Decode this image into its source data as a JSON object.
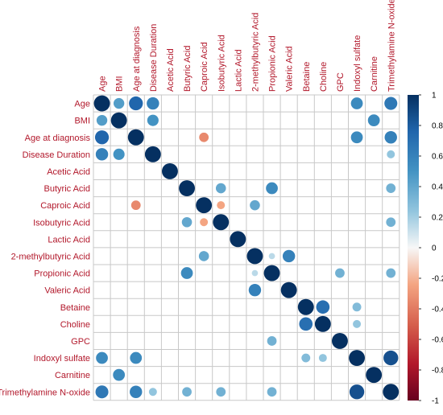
{
  "chart_data": {
    "type": "heatmap",
    "variables": [
      "Age",
      "BMI",
      "Age at diagnosis",
      "Disease Duration",
      "Acetic Acid",
      "Butyric Acid",
      "Caproic Acid",
      "Isobutyric Acid",
      "Lactic Acid",
      "2-methylbutyric Acid",
      "Propionic Acid",
      "Valeric Acid",
      "Betaine",
      "Choline",
      "GPC",
      "Indoxyl sulfate",
      "Carnitine",
      "Trimethylamine N-oxide"
    ],
    "cells": [
      {
        "row": 0,
        "col": 0,
        "value": 1.0
      },
      {
        "row": 0,
        "col": 1,
        "value": 0.45
      },
      {
        "row": 0,
        "col": 2,
        "value": 0.75
      },
      {
        "row": 0,
        "col": 3,
        "value": 0.6
      },
      {
        "row": 0,
        "col": 15,
        "value": 0.55
      },
      {
        "row": 0,
        "col": 17,
        "value": 0.65
      },
      {
        "row": 1,
        "col": 0,
        "value": 0.45
      },
      {
        "row": 1,
        "col": 1,
        "value": 1.0
      },
      {
        "row": 1,
        "col": 3,
        "value": 0.5
      },
      {
        "row": 1,
        "col": 16,
        "value": 0.55
      },
      {
        "row": 2,
        "col": 0,
        "value": 0.75
      },
      {
        "row": 2,
        "col": 2,
        "value": 1.0
      },
      {
        "row": 2,
        "col": 6,
        "value": -0.35
      },
      {
        "row": 2,
        "col": 15,
        "value": 0.55
      },
      {
        "row": 2,
        "col": 17,
        "value": 0.6
      },
      {
        "row": 3,
        "col": 0,
        "value": 0.6
      },
      {
        "row": 3,
        "col": 1,
        "value": 0.5
      },
      {
        "row": 3,
        "col": 3,
        "value": 1.0
      },
      {
        "row": 3,
        "col": 17,
        "value": 0.25
      },
      {
        "row": 4,
        "col": 4,
        "value": 1.0
      },
      {
        "row": 5,
        "col": 5,
        "value": 1.0
      },
      {
        "row": 5,
        "col": 7,
        "value": 0.4
      },
      {
        "row": 5,
        "col": 10,
        "value": 0.55
      },
      {
        "row": 5,
        "col": 17,
        "value": 0.35
      },
      {
        "row": 6,
        "col": 2,
        "value": -0.35
      },
      {
        "row": 6,
        "col": 6,
        "value": 1.0
      },
      {
        "row": 6,
        "col": 7,
        "value": -0.25
      },
      {
        "row": 6,
        "col": 9,
        "value": 0.4
      },
      {
        "row": 7,
        "col": 5,
        "value": 0.4
      },
      {
        "row": 7,
        "col": 6,
        "value": -0.25
      },
      {
        "row": 7,
        "col": 7,
        "value": 1.0
      },
      {
        "row": 7,
        "col": 17,
        "value": 0.35
      },
      {
        "row": 8,
        "col": 8,
        "value": 1.0
      },
      {
        "row": 9,
        "col": 6,
        "value": 0.4
      },
      {
        "row": 9,
        "col": 9,
        "value": 1.0
      },
      {
        "row": 9,
        "col": 10,
        "value": 0.15
      },
      {
        "row": 9,
        "col": 11,
        "value": 0.6
      },
      {
        "row": 10,
        "col": 5,
        "value": 0.55
      },
      {
        "row": 10,
        "col": 9,
        "value": 0.15
      },
      {
        "row": 10,
        "col": 10,
        "value": 1.0
      },
      {
        "row": 10,
        "col": 14,
        "value": 0.35
      },
      {
        "row": 10,
        "col": 17,
        "value": 0.35
      },
      {
        "row": 11,
        "col": 9,
        "value": 0.6
      },
      {
        "row": 11,
        "col": 11,
        "value": 1.0
      },
      {
        "row": 12,
        "col": 12,
        "value": 1.0
      },
      {
        "row": 12,
        "col": 13,
        "value": 0.7
      },
      {
        "row": 12,
        "col": 15,
        "value": 0.3
      },
      {
        "row": 13,
        "col": 12,
        "value": 0.7
      },
      {
        "row": 13,
        "col": 13,
        "value": 1.0
      },
      {
        "row": 13,
        "col": 15,
        "value": 0.25
      },
      {
        "row": 14,
        "col": 10,
        "value": 0.35
      },
      {
        "row": 14,
        "col": 14,
        "value": 1.0
      },
      {
        "row": 15,
        "col": 0,
        "value": 0.55
      },
      {
        "row": 15,
        "col": 2,
        "value": 0.55
      },
      {
        "row": 15,
        "col": 12,
        "value": 0.3
      },
      {
        "row": 15,
        "col": 13,
        "value": 0.25
      },
      {
        "row": 15,
        "col": 15,
        "value": 1.0
      },
      {
        "row": 15,
        "col": 17,
        "value": 0.85
      },
      {
        "row": 16,
        "col": 1,
        "value": 0.55
      },
      {
        "row": 16,
        "col": 16,
        "value": 1.0
      },
      {
        "row": 17,
        "col": 0,
        "value": 0.65
      },
      {
        "row": 17,
        "col": 2,
        "value": 0.6
      },
      {
        "row": 17,
        "col": 3,
        "value": 0.25
      },
      {
        "row": 17,
        "col": 5,
        "value": 0.35
      },
      {
        "row": 17,
        "col": 7,
        "value": 0.35
      },
      {
        "row": 17,
        "col": 10,
        "value": 0.35
      },
      {
        "row": 17,
        "col": 15,
        "value": 0.85
      },
      {
        "row": 17,
        "col": 17,
        "value": 1.0
      }
    ],
    "colorbar": {
      "ticks": [
        "1",
        "0.8",
        "0.6",
        "0.4",
        "0.2",
        "0",
        "-0.2",
        "-0.4",
        "-0.6",
        "-0.8",
        "-1"
      ],
      "range": [
        -1,
        1
      ]
    },
    "colors": {
      "positive_strong": "#053061",
      "positive_mid": "#4393c3",
      "neutral": "#f7f7f7",
      "negative_mid": "#f4a582",
      "negative_strong": "#67001f",
      "label_text": "#b2182b",
      "grid": "#c8c8c8"
    },
    "grid": true,
    "legend_position": "right"
  }
}
